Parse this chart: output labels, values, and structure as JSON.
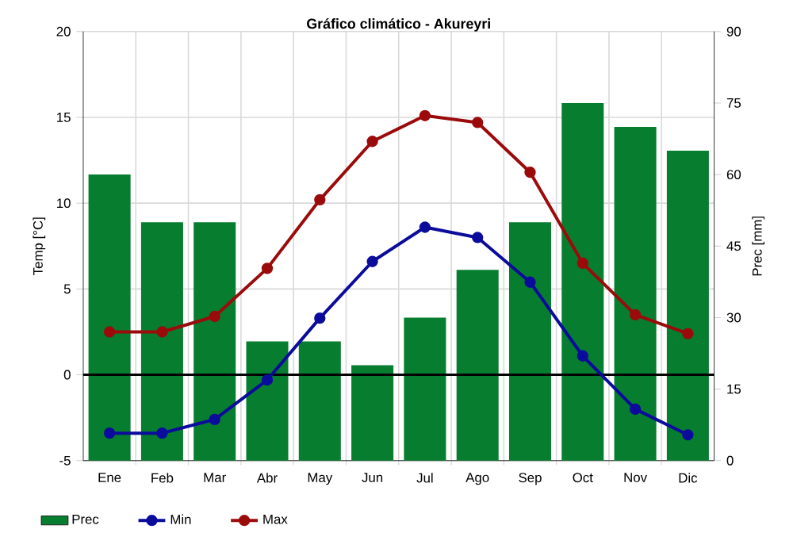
{
  "chart_data": {
    "type": "line",
    "title": "Gráfico climático - Akureyri",
    "ylabel": "Temp [°C]",
    "y2label": "Prec [mm]",
    "categories": [
      "Ene",
      "Feb",
      "Mar",
      "Abr",
      "May",
      "Jun",
      "Jul",
      "Ago",
      "Sep",
      "Oct",
      "Nov",
      "Dic"
    ],
    "series": [
      {
        "name": "Prec",
        "type": "bar",
        "axis": "y2",
        "color": "#077d2f",
        "values": [
          60,
          50,
          50,
          25,
          25,
          20,
          30,
          40,
          50,
          75,
          70,
          65
        ]
      },
      {
        "name": "Min",
        "color": "#0b0b9c",
        "values": [
          -3.4,
          -3.4,
          -2.6,
          -0.3,
          3.3,
          6.6,
          8.6,
          8.0,
          5.4,
          1.1,
          -2.0,
          -3.5
        ]
      },
      {
        "name": "Max",
        "color": "#9b0b0b",
        "values": [
          2.5,
          2.5,
          3.4,
          6.2,
          10.2,
          13.6,
          15.1,
          14.7,
          11.8,
          6.5,
          3.5,
          2.4
        ]
      }
    ],
    "ylim": [
      -5,
      20
    ],
    "yticks": [
      -5,
      0,
      5,
      10,
      15,
      20
    ],
    "y2lim": [
      0,
      90
    ],
    "y2ticks": [
      0,
      15,
      30,
      45,
      60,
      75,
      90
    ],
    "ref_lines": [
      {
        "axis": "y",
        "value": 0,
        "color": "#000000"
      }
    ],
    "grid": true,
    "legend": "bottom",
    "marker": "circle"
  }
}
